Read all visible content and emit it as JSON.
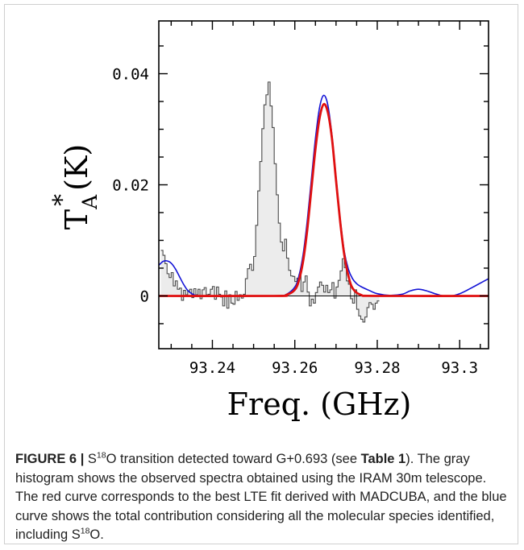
{
  "chart_data": {
    "type": "line",
    "xlabel": "Freq. (GHz)",
    "ylabel": {
      "base": "T",
      "sub": "A",
      "sup": "*",
      "tail": "(K)"
    },
    "xlim": [
      93.227,
      93.307
    ],
    "ylim": [
      -0.0095,
      0.0495
    ],
    "xticks": [
      93.24,
      93.26,
      93.28,
      93.3
    ],
    "xtick_labels": [
      "93.24",
      "93.26",
      "93.28",
      "93.3"
    ],
    "yticks": [
      0,
      0.02,
      0.04
    ],
    "ytick_labels": [
      "0",
      "0.02",
      "0.04"
    ],
    "grid": false,
    "histogram": {
      "x_start": 93.2275,
      "step": 0.0005,
      "values": [
        0.0082,
        0.0073,
        0.0058,
        0.004,
        0.0033,
        0.0042,
        0.0018,
        0.0027,
        0.0012,
        0.0014,
        -0.0008,
        0.001,
        0.0002,
        0.0009,
        0.0012,
        -0.0003,
        0.0013,
        0.0002,
        0.0012,
        -0.0005,
        0.0011,
        0.0015,
        0.0002,
        0.0003,
        0.0012,
        0.0017,
        -0.0006,
        0.0016,
        0.0003,
        -0.0002,
        -0.0018,
        0.0009,
        -0.0022,
        0.0002,
        -0.0013,
        -0.0015,
        0.0008,
        -0.0008,
        0.0002,
        -0.0004,
        0.0003,
        0.0031,
        0.0049,
        0.0057,
        0.0046,
        0.0071,
        0.0127,
        0.0189,
        0.0242,
        0.0301,
        0.0344,
        0.0362,
        0.0385,
        0.0342,
        0.0303,
        0.0238,
        0.0182,
        0.0131,
        0.0097,
        0.0081,
        0.0102,
        0.0068,
        0.0046,
        0.0036,
        0.0035,
        0.0026,
        0.0032,
        0.0038,
        0.0008,
        0.0025,
        0.0036,
        0.0007,
        -0.0018,
        -0.0006,
        -0.0013,
        0.0006,
        0.0016,
        0.0025,
        0.0019,
        0.0007,
        0.0019,
        0.0006,
        0.0011,
        0.0024,
        -0.0004,
        0.0016,
        0.0028,
        0.0045,
        0.0067,
        0.0051,
        0.0027,
        0.0021,
        -0.0005,
        -0.0013,
        0.0011,
        -0.0024,
        -0.0036,
        -0.0042,
        -0.0047,
        -0.0038,
        -0.0021,
        -0.0012,
        -0.0015,
        -0.0024,
        -0.0013,
        -0.0009
      ]
    },
    "series": [
      {
        "color": "#1414d6",
        "x": [
          93.227,
          93.228,
          93.229,
          93.23,
          93.231,
          93.232,
          93.233,
          93.234,
          93.235,
          93.236,
          93.238,
          93.24,
          93.244,
          93.25,
          93.256,
          93.258,
          93.26,
          93.261,
          93.262,
          93.263,
          93.264,
          93.265,
          93.266,
          93.267,
          93.268,
          93.269,
          93.27,
          93.271,
          93.272,
          93.273,
          93.274,
          93.275,
          93.276,
          93.278,
          93.28,
          93.283,
          93.286,
          93.288,
          93.29,
          93.292,
          93.294,
          93.296,
          93.298,
          93.3,
          93.302,
          93.304,
          93.307
        ],
        "y": [
          0.0055,
          0.0062,
          0.0063,
          0.0059,
          0.0049,
          0.0035,
          0.0021,
          0.001,
          0.0004,
          0.0001,
          0,
          0,
          0,
          0,
          0,
          0.0003,
          0.0016,
          0.0036,
          0.0074,
          0.0134,
          0.0208,
          0.0283,
          0.0339,
          0.0361,
          0.0344,
          0.029,
          0.0214,
          0.0139,
          0.008,
          0.0048,
          0.0031,
          0.0022,
          0.0017,
          0.001,
          0.0004,
          0.0001,
          0.0003,
          0.0009,
          0.0012,
          0.0009,
          0.0004,
          0,
          0,
          0.0004,
          0.0011,
          0.0019,
          0.0031
        ]
      },
      {
        "color": "#e01010",
        "x": [
          93.227,
          93.255,
          93.258,
          93.26,
          93.261,
          93.262,
          93.263,
          93.264,
          93.265,
          93.266,
          93.267,
          93.268,
          93.269,
          93.27,
          93.271,
          93.272,
          93.273,
          93.274,
          93.276,
          93.28,
          93.307
        ],
        "y": [
          0,
          0,
          0.0002,
          0.0011,
          0.0028,
          0.0062,
          0.0118,
          0.0191,
          0.0264,
          0.032,
          0.0345,
          0.0331,
          0.0284,
          0.0208,
          0.0134,
          0.0074,
          0.0036,
          0.0014,
          0.0002,
          0,
          0
        ]
      }
    ]
  },
  "caption": {
    "label": "FIGURE 6",
    "sep": " | ",
    "s1": "S",
    "iso": "18",
    "s2": "O transition detected toward G+0.693 (see ",
    "ref": "Table 1",
    "s3": "). The gray histogram shows the observed spectra obtained using the IRAM 30m telescope. The red curve corresponds to the best LTE fit derived with MADCUBA, and the blue curve shows the total contribution considering all the molecular species identified, including S",
    "iso2": "18",
    "s4": "O."
  }
}
